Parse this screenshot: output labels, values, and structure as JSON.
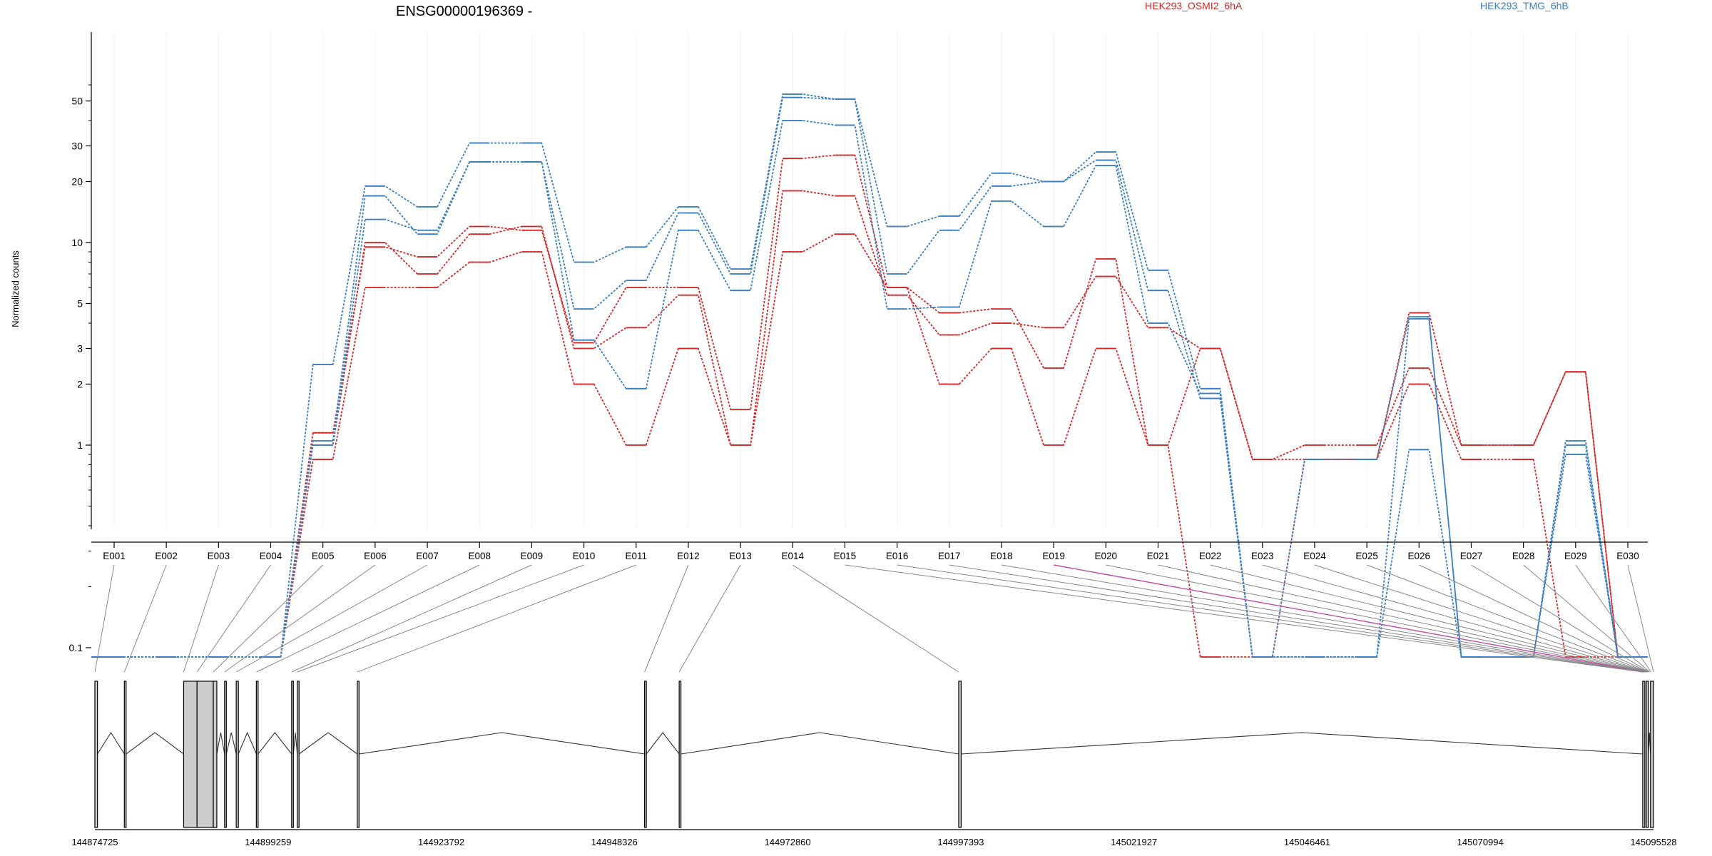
{
  "colors": {
    "red": "#d62728",
    "blue": "#3a7fc1",
    "highlight": "#c04fa8",
    "exon_fill": "#cccccc",
    "axis": "#000000"
  },
  "chart_data": {
    "type": "line",
    "title": "ENSG00000196369 -",
    "ylabel": "Normalized counts",
    "y_scale": "log",
    "y_ticks": [
      0.1,
      1,
      2,
      3,
      5,
      10,
      20,
      30,
      50
    ],
    "y_tick_labels": [
      "0.1",
      "1",
      "2",
      "3",
      "5",
      "10",
      "20",
      "30",
      "50"
    ],
    "legend": [
      {
        "name": "HEK293_OSMI2_6hA",
        "color": "#d62728"
      },
      {
        "name": "HEK293_TMG_6hB",
        "color": "#3a7fc1"
      }
    ],
    "categories": [
      "E001",
      "E002",
      "E003",
      "E004",
      "E005",
      "E006",
      "E007",
      "E008",
      "E009",
      "E010",
      "E011",
      "E012",
      "E013",
      "E014",
      "E015",
      "E016",
      "E017",
      "E018",
      "E019",
      "E020",
      "E021",
      "E022",
      "E023",
      "E024",
      "E025",
      "E026",
      "E027",
      "E028",
      "E029",
      "E030"
    ],
    "series": [
      {
        "group": "HEK293_OSMI2_6hA",
        "color": "#d62728",
        "values": [
          0.09,
          0.09,
          0.09,
          0.09,
          0.85,
          6,
          6,
          8,
          9,
          2,
          1,
          3,
          1,
          9,
          11,
          6,
          2,
          3,
          1,
          3,
          1,
          0.09,
          0.09,
          0.85,
          0.85,
          2,
          0.85,
          0.85,
          0.09,
          0.09
        ]
      },
      {
        "group": "HEK293_OSMI2_6hA",
        "color": "#d62728",
        "values": [
          0.09,
          0.09,
          0.09,
          0.09,
          1,
          10,
          7,
          11,
          12,
          3,
          3.8,
          5.5,
          1,
          18,
          17,
          5.5,
          3.5,
          4,
          3.8,
          6.8,
          3.8,
          3,
          0.85,
          1,
          1,
          2.4,
          1,
          1,
          2.3,
          0.09
        ]
      },
      {
        "group": "HEK293_OSMI2_6hA",
        "color": "#d62728",
        "values": [
          0.09,
          0.09,
          0.09,
          0.09,
          1.15,
          9.5,
          8.5,
          12,
          11.5,
          3.2,
          6,
          6,
          1.5,
          26,
          27,
          6,
          4.5,
          4.7,
          2.4,
          8.3,
          1,
          3,
          0.85,
          0.85,
          0.85,
          4.5,
          1,
          1,
          2.3,
          0.09
        ]
      },
      {
        "group": "HEK293_TMG_6hB",
        "color": "#3a7fc1",
        "values": [
          0.09,
          0.09,
          0.09,
          0.09,
          1.05,
          17,
          11,
          25,
          25,
          3.3,
          1.9,
          11.5,
          5.8,
          40,
          38,
          4.7,
          4.8,
          16,
          12,
          24,
          4,
          1.8,
          0.09,
          0.09,
          0.09,
          0.95,
          0.09,
          0.09,
          1.05,
          0.09
        ]
      },
      {
        "group": "HEK293_TMG_6hB",
        "color": "#3a7fc1",
        "values": [
          0.09,
          0.09,
          0.09,
          0.09,
          1,
          13,
          11.5,
          25,
          25,
          4.7,
          6.5,
          14,
          7,
          52,
          51,
          7,
          11.5,
          19,
          20,
          25.5,
          5.8,
          1.7,
          0.09,
          0.09,
          0.09,
          4.2,
          0.09,
          0.09,
          0.9,
          0.09
        ]
      },
      {
        "group": "HEK293_TMG_6hB",
        "color": "#3a7fc1",
        "values": [
          0.09,
          0.09,
          0.09,
          0.09,
          2.5,
          19,
          15,
          31,
          31,
          8,
          9.5,
          15,
          7.4,
          54,
          51,
          12,
          13.5,
          22,
          20,
          28,
          7.3,
          1.9,
          0.09,
          0.85,
          0.85,
          4.3,
          0.09,
          0.09,
          1,
          0.09
        ]
      }
    ],
    "coordinate_ticks": [
      "144874725",
      "144899259",
      "144923792",
      "144948326",
      "144972860",
      "144997393",
      "145021927",
      "145046461",
      "145070994",
      "145095528"
    ],
    "gene_model": {
      "genome_range": [
        144874725,
        145095528
      ],
      "exons": [
        {
          "start": 144874725,
          "end": 144875095
        },
        {
          "start": 144878900,
          "end": 144879150
        },
        {
          "start": 144887300,
          "end": 144889200
        },
        {
          "start": 144889200,
          "end": 144891500
        },
        {
          "start": 144891500,
          "end": 144892000
        },
        {
          "start": 144893100,
          "end": 144893350
        },
        {
          "start": 144894750,
          "end": 144895050
        },
        {
          "start": 144897600,
          "end": 144897850
        },
        {
          "start": 144902600,
          "end": 144902850
        },
        {
          "start": 144903400,
          "end": 144903650
        },
        {
          "start": 144911900,
          "end": 144912150
        },
        {
          "start": 144952600,
          "end": 144952850
        },
        {
          "start": 144957500,
          "end": 144957750
        },
        {
          "start": 144997100,
          "end": 144997450
        },
        {
          "start": 145094000,
          "end": 145094300
        },
        {
          "start": 145094500,
          "end": 145094800
        },
        {
          "start": 145095100,
          "end": 145095528
        }
      ],
      "links": [
        144874725,
        144878900,
        144887300,
        144889200,
        144891500,
        144893100,
        144894750,
        144897600,
        144902600,
        144903400,
        144911900,
        144952600,
        144957500,
        144997100,
        145094000,
        145094000,
        145094000,
        145094000,
        145094100,
        145094200,
        145094300,
        145094400,
        145094500,
        145094600,
        145094700,
        145094800,
        145094900,
        145095000,
        145095200,
        145095528
      ],
      "highlight_exon": "E019"
    }
  }
}
